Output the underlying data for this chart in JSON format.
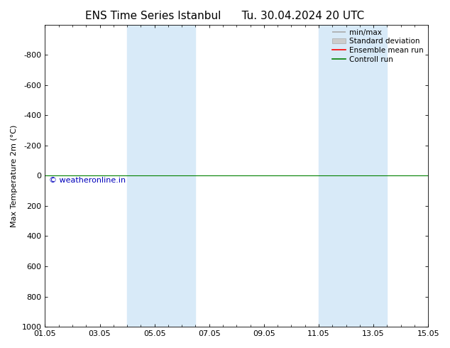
{
  "title_left": "ENS Time Series Istanbul",
  "title_right": "Tu. 30.04.2024 20 UTC",
  "ylabel": "Max Temperature 2m (°C)",
  "xtick_labels": [
    "01.05",
    "03.05",
    "05.05",
    "07.05",
    "09.05",
    "11.05",
    "13.05",
    "15.05"
  ],
  "xtick_positions": [
    0,
    2,
    4,
    6,
    8,
    10,
    12,
    14
  ],
  "ylim_top": -1000,
  "ylim_bottom": 1000,
  "yticks": [
    -800,
    -600,
    -400,
    -200,
    0,
    200,
    400,
    600,
    800,
    1000
  ],
  "background_color": "#ffffff",
  "plot_bg_color": "#ffffff",
  "shaded_bands": [
    {
      "x_start": 3.0,
      "x_end": 5.5,
      "color": "#d8eaf8"
    },
    {
      "x_start": 10.0,
      "x_end": 12.5,
      "color": "#d8eaf8"
    }
  ],
  "horizontal_line_y": 0,
  "horizontal_line_color_green": "#008000",
  "watermark_text": "© weatheronline.in",
  "watermark_color": "#0000bb",
  "title_fontsize": 11,
  "axis_label_fontsize": 8,
  "tick_fontsize": 8,
  "legend_fontsize": 7.5
}
